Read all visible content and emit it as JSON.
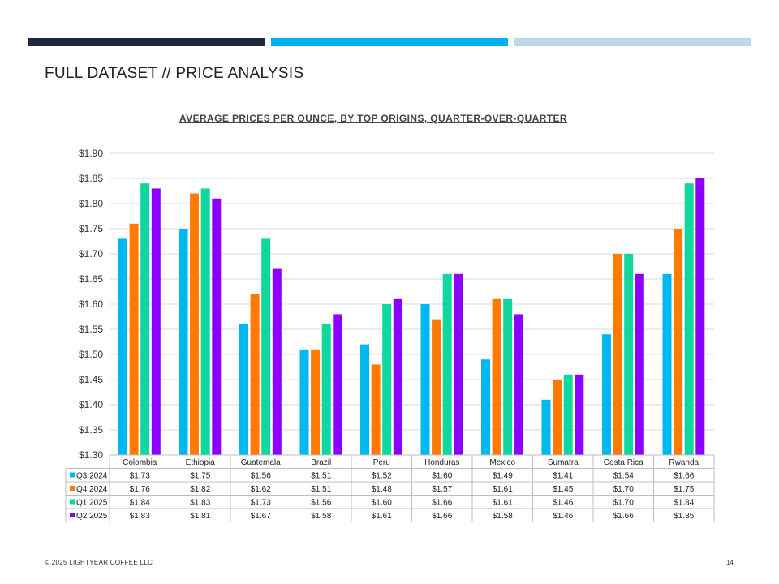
{
  "slide": {
    "title": "FULL DATASET // PRICE ANALYSIS",
    "footer": "© 2025 LIGHTYEAR COFFEE LLC",
    "page_number": "14",
    "header_bar_colors": [
      "#1F2746",
      "#00B0F0",
      "#BDD7EE"
    ]
  },
  "chart_data": {
    "type": "bar",
    "title": "AVERAGE PRICES PER OUNCE, BY TOP ORIGINS, QUARTER-OVER-QUARTER",
    "xlabel": "",
    "ylabel": "",
    "ylim": [
      1.3,
      1.9
    ],
    "y_ticks": [
      "$1.30",
      "$1.35",
      "$1.40",
      "$1.45",
      "$1.50",
      "$1.55",
      "$1.60",
      "$1.65",
      "$1.70",
      "$1.75",
      "$1.80",
      "$1.85",
      "$1.90"
    ],
    "y_tick_values": [
      1.3,
      1.35,
      1.4,
      1.45,
      1.5,
      1.55,
      1.6,
      1.65,
      1.7,
      1.75,
      1.8,
      1.85,
      1.9
    ],
    "grid": true,
    "legend": "data-table",
    "categories": [
      "Colombia",
      "Ethiopia",
      "Guatemala",
      "Brazil",
      "Peru",
      "Honduras",
      "Mexico",
      "Sumatra",
      "Costa Rica",
      "Rwanda"
    ],
    "series": [
      {
        "name": "Q3 2024",
        "color": "#00B8F0",
        "values": [
          1.73,
          1.75,
          1.56,
          1.51,
          1.52,
          1.6,
          1.49,
          1.41,
          1.54,
          1.66
        ],
        "labels": [
          "$1.73",
          "$1.75",
          "$1.56",
          "$1.51",
          "$1.52",
          "$1.60",
          "$1.49",
          "$1.41",
          "$1.54",
          "$1.66"
        ]
      },
      {
        "name": "Q4 2024",
        "color": "#FF7A00",
        "values": [
          1.76,
          1.82,
          1.62,
          1.51,
          1.48,
          1.57,
          1.61,
          1.45,
          1.7,
          1.75
        ],
        "labels": [
          "$1.76",
          "$1.82",
          "$1.62",
          "$1.51",
          "$1.48",
          "$1.57",
          "$1.61",
          "$1.45",
          "$1.70",
          "$1.75"
        ]
      },
      {
        "name": "Q1 2025",
        "color": "#10D6A0",
        "values": [
          1.84,
          1.83,
          1.73,
          1.56,
          1.6,
          1.66,
          1.61,
          1.46,
          1.7,
          1.84
        ],
        "labels": [
          "$1.84",
          "$1.83",
          "$1.73",
          "$1.56",
          "$1.60",
          "$1.66",
          "$1.61",
          "$1.46",
          "$1.70",
          "$1.84"
        ]
      },
      {
        "name": "Q2 2025",
        "color": "#8B00FF",
        "values": [
          1.83,
          1.81,
          1.67,
          1.58,
          1.61,
          1.66,
          1.58,
          1.46,
          1.66,
          1.85
        ],
        "labels": [
          "$1.83",
          "$1.81",
          "$1.67",
          "$1.58",
          "$1.61",
          "$1.66",
          "$1.58",
          "$1.46",
          "$1.66",
          "$1.85"
        ]
      }
    ]
  }
}
